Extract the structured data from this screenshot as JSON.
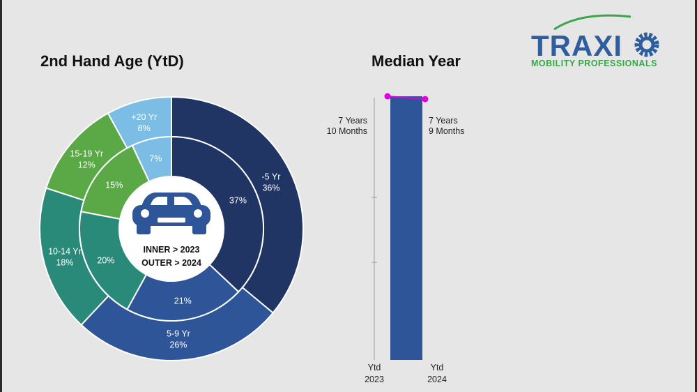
{
  "chart_data": [
    {
      "type": "pie",
      "variant": "double-donut",
      "title": "2nd Hand Age (YtD)",
      "center_label": [
        "INNER > 2023",
        "OUTER > 2024"
      ],
      "center_icon": "car-icon",
      "inner_ring": {
        "year": "2023",
        "slices": [
          {
            "name": "-5 Yr",
            "value": 37,
            "label": "37%",
            "color": "#213565"
          },
          {
            "name": "5-9 Yr",
            "value": 21,
            "label": "21%",
            "color": "#2e5597"
          },
          {
            "name": "10-14 Yr",
            "value": 20,
            "label": "20%",
            "color": "#2a8a7a"
          },
          {
            "name": "15-19 Yr",
            "value": 15,
            "label": "15%",
            "color": "#5aa846"
          },
          {
            "name": "+20 Yr",
            "value": 7,
            "label": "7%",
            "color": "#7cbde5"
          }
        ]
      },
      "outer_ring": {
        "year": "2024",
        "slices": [
          {
            "name": "-5 Yr",
            "value": 36,
            "label_name": "-5 Yr",
            "label_value": "36%",
            "color": "#213565"
          },
          {
            "name": "5-9 Yr",
            "value": 26,
            "label_name": "5-9 Yr",
            "label_value": "26%",
            "color": "#2e5597"
          },
          {
            "name": "10-14 Yr",
            "value": 18,
            "label_name": "10-14 Yr",
            "label_value": "18%",
            "color": "#2a8a7a"
          },
          {
            "name": "15-19 Yr",
            "value": 12,
            "label_name": "15-19 Yr",
            "label_value": "12%",
            "color": "#5aa846"
          },
          {
            "name": "+20 Yr",
            "value": 8,
            "label_name": "+20 Yr",
            "label_value": "8%",
            "color": "#7cbde5"
          }
        ]
      }
    },
    {
      "type": "bar",
      "title": "Median Year",
      "categories": [
        [
          "Ytd",
          "2023"
        ],
        [
          "Ytd",
          "2024"
        ]
      ],
      "values_months": [
        94,
        93
      ],
      "value_labels": [
        [
          "7 Years",
          "10 Months"
        ],
        [
          "7 Years",
          "9 Months"
        ]
      ],
      "bar_color": "#2e5597",
      "line_color": "#e000e0",
      "ylim_months": [
        0,
        96
      ]
    }
  ],
  "logo": {
    "text_main": "TRAXI",
    "text_o": "O",
    "text_sub": "MOBILITY PROFESSIONALS"
  },
  "colors": {
    "background": "#e6e6e6",
    "brand_blue": "#2f5e9c",
    "brand_green": "#39a64a"
  }
}
